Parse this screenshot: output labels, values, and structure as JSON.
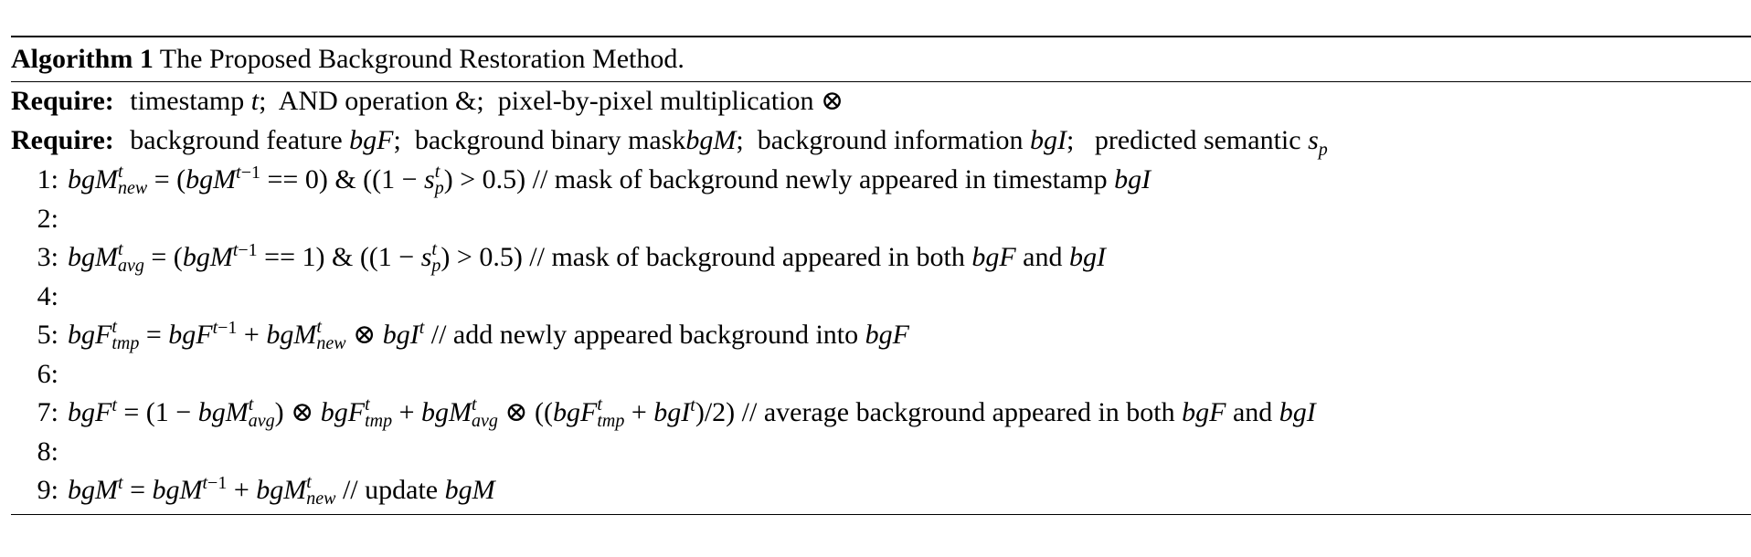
{
  "algorithm": {
    "label": "Algorithm 1",
    "title": "The Proposed Background Restoration Method.",
    "require_label": "Require:",
    "require_1": "timestamp t;  AND operation &;  pixel-by-pixel multiplication ⊗",
    "require_2": "background feature bgF;  background binary maskbgM;  background information bgI;   predicted semantic sp",
    "lines": [
      {
        "num": "1:",
        "formula": "bgM^t_new = (bgM^{t−1} == 0) & ((1 − s^t_p) > 0.5)",
        "comment": "// mask of background newly appeared in timestamp bgI"
      },
      {
        "num": "2:",
        "formula": "",
        "comment": ""
      },
      {
        "num": "3:",
        "formula": "bgM^t_avg = (bgM^{t−1} == 1) & ((1 − s^t_p) > 0.5)",
        "comment": "// mask of background appeared in both bgF and bgI"
      },
      {
        "num": "4:",
        "formula": "",
        "comment": ""
      },
      {
        "num": "5:",
        "formula": "bgF^t_tmp = bgF^{t−1} + bgM^t_new ⊗ bgI^t",
        "comment": "// add newly appeared background into bgF"
      },
      {
        "num": "6:",
        "formula": "",
        "comment": ""
      },
      {
        "num": "7:",
        "formula": "bgF^t = (1 − bgM^t_avg) ⊗ bgF^t_tmp + bgM^t_avg ⊗ ((bgF^t_tmp + bgI^t)/2)",
        "comment": "// average background appeared in both bgF and bgI"
      },
      {
        "num": "8:",
        "formula": "",
        "comment": ""
      },
      {
        "num": "9:",
        "formula": "bgM^t = bgM^{t−1} + bgM^t_new",
        "comment": "// update bgM"
      }
    ]
  }
}
